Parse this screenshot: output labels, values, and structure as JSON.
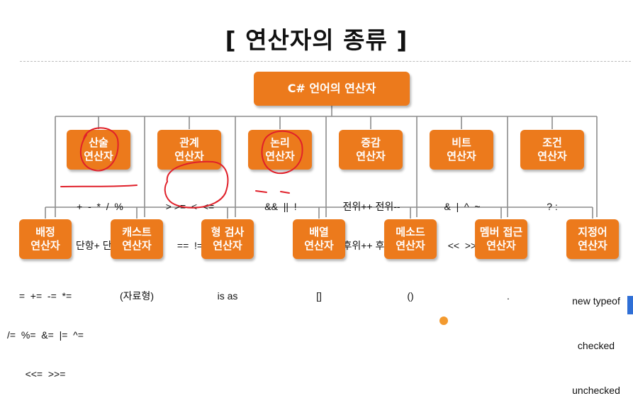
{
  "title": "[ 연산자의 종류 ]",
  "root": {
    "label": "C# 언어의 연산자"
  },
  "middle": [
    {
      "line1": "산술",
      "line2": "연산자",
      "ops": [
        "+  -  *  /  %",
        "단항+ 단항-"
      ]
    },
    {
      "line1": "관계",
      "line2": "연산자",
      "ops": [
        "> >=  <  <=",
        "==  !="
      ]
    },
    {
      "line1": "논리",
      "line2": "연산자",
      "ops": [
        "&&  ||  !"
      ]
    },
    {
      "line1": "증감",
      "line2": "연산자",
      "ops": [
        "전위++ 전위--",
        "후위++ 후위--"
      ]
    },
    {
      "line1": "비트",
      "line2": "연산자",
      "ops": [
        "&  |  ^  ~",
        "<<  >>"
      ]
    },
    {
      "line1": "조건",
      "line2": "연산자",
      "ops": [
        "? :"
      ]
    }
  ],
  "bottom": [
    {
      "line1": "배정",
      "line2": "연산자",
      "ops": [
        "=  +=  -=  *=",
        "/=  %=  &=  |=  ^=",
        "<<=  >>="
      ]
    },
    {
      "line1": "캐스트",
      "line2": "연산자",
      "ops": [
        "(자료형)"
      ]
    },
    {
      "line1": "형 검사",
      "line2": "연산자",
      "ops": [
        "is as"
      ]
    },
    {
      "line1": "배열",
      "line2": "연산자",
      "ops": [
        "[]"
      ]
    },
    {
      "line1": "메소드",
      "line2": "연산자",
      "ops": [
        "()"
      ]
    },
    {
      "line1": "멤버 접근",
      "line2": "연산자",
      "ops": [
        "."
      ]
    },
    {
      "line1": "지정어",
      "line2": "연산자",
      "ops": [
        "new typeof",
        "checked",
        "unchecked"
      ]
    }
  ],
  "colors": {
    "box": "#ec7a1c",
    "box_text": "#ffffff",
    "line": "#8c8c8c",
    "annotation_ink": "#e0202a"
  }
}
